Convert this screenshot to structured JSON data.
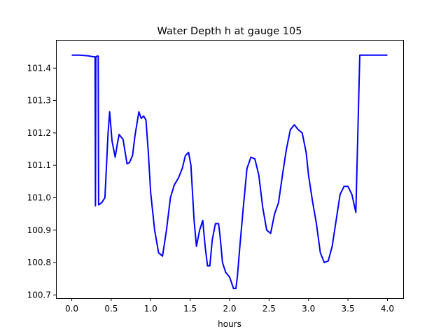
{
  "chart_data": {
    "type": "line",
    "title": "Water Depth h at gauge 105",
    "xlabel": "hours",
    "ylabel": "",
    "xlim": [
      -0.2,
      4.2
    ],
    "ylim": [
      100.69,
      101.487
    ],
    "xticks": [
      0.0,
      0.5,
      1.0,
      1.5,
      2.0,
      2.5,
      3.0,
      3.5,
      4.0
    ],
    "xtick_labels": [
      "0.0",
      "0.5",
      "1.0",
      "1.5",
      "2.0",
      "2.5",
      "3.0",
      "3.5",
      "4.0"
    ],
    "yticks": [
      100.7,
      100.8,
      100.9,
      101.0,
      101.1,
      101.2,
      101.3,
      101.4
    ],
    "ytick_labels": [
      "100.7",
      "100.8",
      "100.9",
      "101.0",
      "101.1",
      "101.2",
      "101.3",
      "101.4"
    ],
    "grid": false,
    "legend": "none",
    "series": [
      {
        "color": "#0000ff",
        "x": [
          0.0,
          0.1,
          0.2,
          0.28,
          0.29,
          0.295,
          0.3,
          0.305,
          0.31,
          0.32,
          0.33,
          0.335,
          0.34,
          0.38,
          0.42,
          0.46,
          0.48,
          0.51,
          0.55,
          0.58,
          0.6,
          0.65,
          0.7,
          0.73,
          0.77,
          0.8,
          0.85,
          0.88,
          0.91,
          0.94,
          0.97,
          1.0,
          1.05,
          1.1,
          1.15,
          1.2,
          1.25,
          1.3,
          1.35,
          1.4,
          1.44,
          1.48,
          1.51,
          1.55,
          1.58,
          1.62,
          1.66,
          1.69,
          1.72,
          1.75,
          1.78,
          1.82,
          1.86,
          1.88,
          1.91,
          1.95,
          2.0,
          2.05,
          2.08,
          2.1,
          2.13,
          2.17,
          2.22,
          2.27,
          2.32,
          2.37,
          2.42,
          2.47,
          2.52,
          2.57,
          2.62,
          2.67,
          2.72,
          2.77,
          2.82,
          2.87,
          2.92,
          2.97,
          3.0,
          3.05,
          3.1,
          3.15,
          3.2,
          3.25,
          3.3,
          3.35,
          3.4,
          3.45,
          3.5,
          3.55,
          3.6,
          3.65,
          3.7,
          3.75,
          3.8,
          3.85,
          3.9,
          3.95,
          4.0
        ],
        "values": [
          101.44,
          101.44,
          101.438,
          101.435,
          101.435,
          101.435,
          100.975,
          101.435,
          101.435,
          101.437,
          101.437,
          101.437,
          100.978,
          100.985,
          101.0,
          101.2,
          101.265,
          101.175,
          101.125,
          101.17,
          101.195,
          101.18,
          101.105,
          101.108,
          101.13,
          101.19,
          101.265,
          101.245,
          101.252,
          101.24,
          101.14,
          101.015,
          100.9,
          100.83,
          100.82,
          100.9,
          101.0,
          101.04,
          101.06,
          101.09,
          101.13,
          101.14,
          101.1,
          100.93,
          100.85,
          100.9,
          100.93,
          100.85,
          100.79,
          100.79,
          100.87,
          100.92,
          100.92,
          100.88,
          100.8,
          100.77,
          100.755,
          100.72,
          100.72,
          100.76,
          100.85,
          100.96,
          101.09,
          101.125,
          101.12,
          101.07,
          100.97,
          100.9,
          100.89,
          100.95,
          100.985,
          101.07,
          101.15,
          101.21,
          101.225,
          101.21,
          101.2,
          101.14,
          101.07,
          100.99,
          100.92,
          100.83,
          100.8,
          100.805,
          100.85,
          100.93,
          101.01,
          101.035,
          101.035,
          101.01,
          100.955,
          101.44,
          101.44,
          101.44,
          101.44,
          101.44,
          101.44,
          101.44,
          101.44
        ]
      }
    ]
  }
}
